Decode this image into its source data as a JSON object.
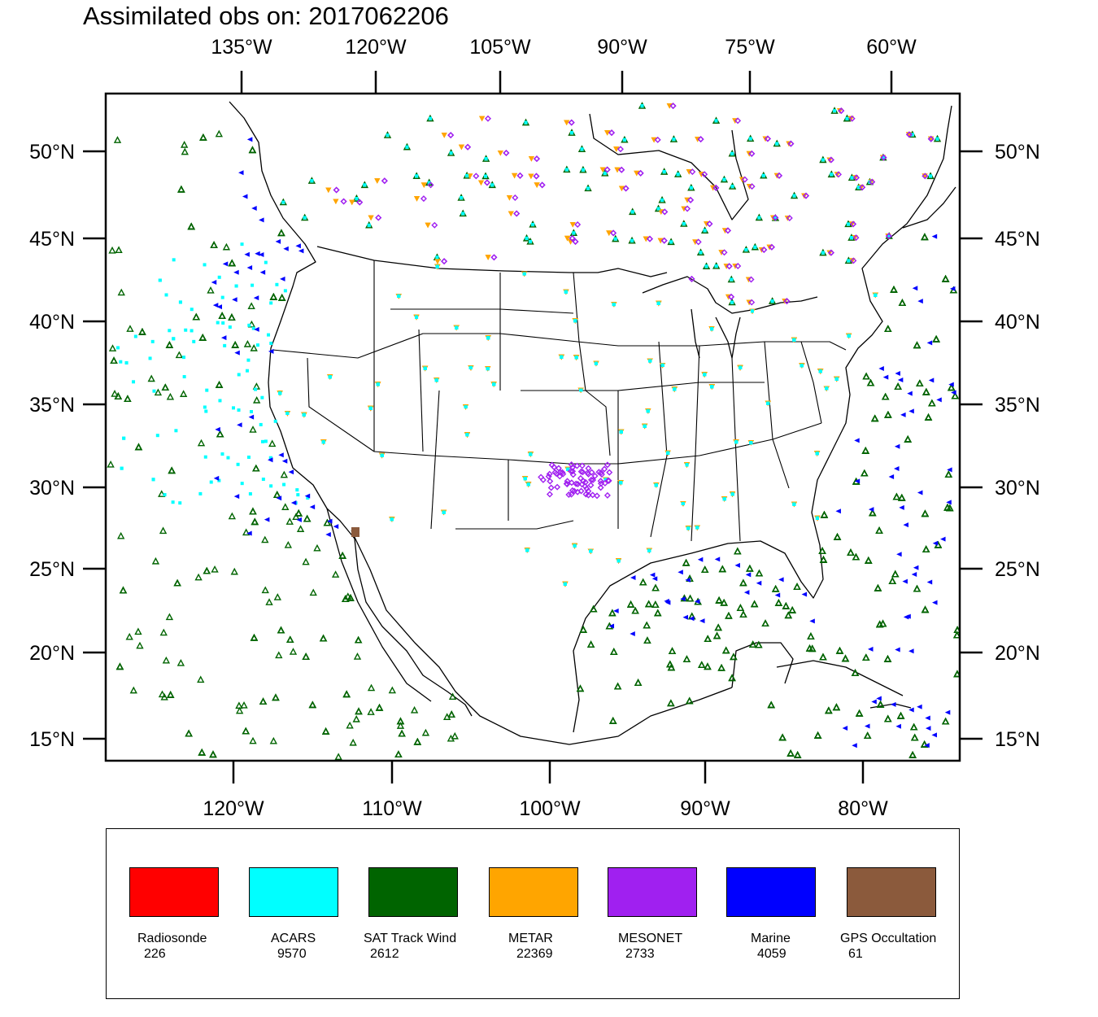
{
  "title": "Assimilated obs on: 2017062206",
  "top_lon_labels": [
    "135°W",
    "120°W",
    "105°W",
    "90°W",
    "75°W",
    "60°W"
  ],
  "bottom_lon_labels": [
    "120°W",
    "110°W",
    "100°W",
    "90°W",
    "80°W"
  ],
  "lat_labels": [
    "50°N",
    "45°N",
    "40°N",
    "35°N",
    "30°N",
    "25°N",
    "20°N",
    "15°N"
  ],
  "colors": {
    "radiosonde": "#ff0000",
    "acars": "#00ffff",
    "sat_track_wind": "#006400",
    "metar": "#ffa500",
    "mesonet": "#a020f0",
    "marine": "#0000ff",
    "gps_occultation": "#8b5a3c"
  },
  "legend": [
    {
      "key": "radiosonde",
      "name": "Radiosonde",
      "count": "226",
      "color": "#ff0000"
    },
    {
      "key": "acars",
      "name": "ACARS",
      "count": "9570",
      "color": "#00ffff"
    },
    {
      "key": "sat_track_wind",
      "name": "SAT Track Wind",
      "count": "2612",
      "color": "#006400"
    },
    {
      "key": "metar",
      "name": "METAR",
      "count": "22369",
      "color": "#ffa500"
    },
    {
      "key": "mesonet",
      "name": "MESONET",
      "count": "2733",
      "color": "#a020f0"
    },
    {
      "key": "marine",
      "name": "Marine",
      "count": "4059",
      "color": "#0000ff"
    },
    {
      "key": "gps_occultation",
      "name": "GPS Occultation",
      "count": "61",
      "color": "#8b5a3c"
    }
  ]
}
